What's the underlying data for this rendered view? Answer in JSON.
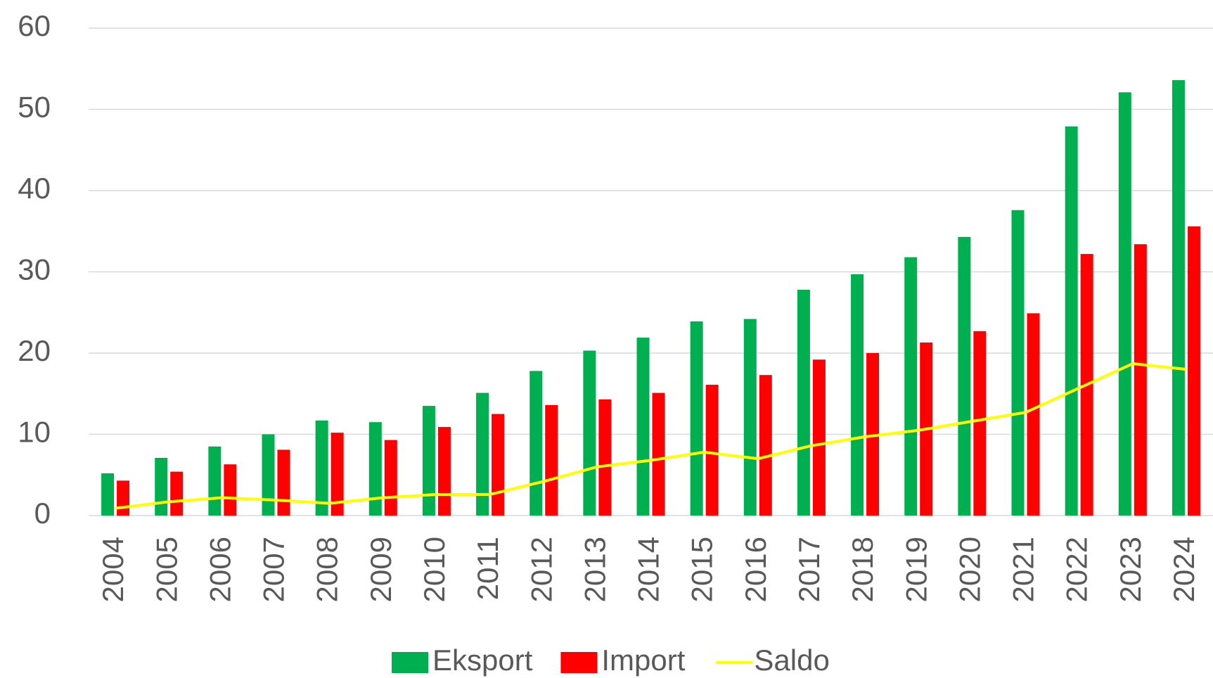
{
  "chart_data": {
    "type": "bar",
    "categories": [
      "2004",
      "2005",
      "2006",
      "2007",
      "2008",
      "2009",
      "2010",
      "2011",
      "2012",
      "2013",
      "2014",
      "2015",
      "2016",
      "2017",
      "2018",
      "2019",
      "2020",
      "2021",
      "2022",
      "2023",
      "2024"
    ],
    "series": [
      {
        "name": "Eksport",
        "color": "#00b050",
        "type": "bar",
        "values": [
          5.2,
          7.1,
          8.5,
          10.0,
          11.7,
          11.5,
          13.5,
          15.1,
          17.8,
          20.3,
          21.9,
          23.9,
          24.2,
          27.8,
          29.7,
          31.8,
          34.3,
          37.6,
          47.9,
          52.1,
          53.6
        ]
      },
      {
        "name": "Import",
        "color": "#ff0000",
        "type": "bar",
        "values": [
          4.3,
          5.4,
          6.3,
          8.1,
          10.2,
          9.3,
          10.9,
          12.5,
          13.6,
          14.3,
          15.1,
          16.1,
          17.3,
          19.2,
          20.0,
          21.3,
          22.7,
          24.9,
          32.2,
          33.4,
          35.6
        ]
      },
      {
        "name": "Saldo",
        "color": "#ffff00",
        "type": "line",
        "values": [
          0.9,
          1.7,
          2.2,
          1.9,
          1.5,
          2.2,
          2.6,
          2.6,
          4.2,
          6.0,
          6.8,
          7.8,
          7.0,
          8.6,
          9.7,
          10.5,
          11.6,
          12.7,
          15.7,
          18.7,
          18.0
        ]
      }
    ],
    "ylim": [
      0,
      60
    ],
    "yticks": [
      0,
      10,
      20,
      30,
      40,
      50,
      60
    ],
    "grid": true,
    "legend": "bottom"
  }
}
